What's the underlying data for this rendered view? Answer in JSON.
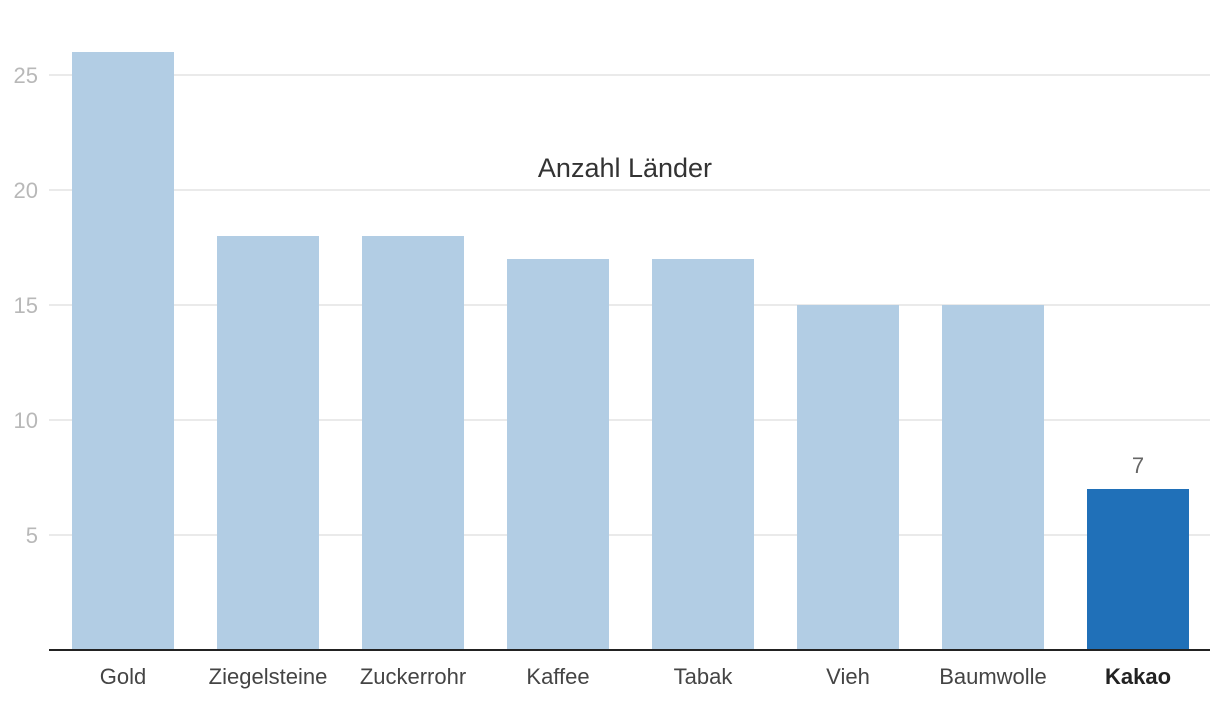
{
  "chart_data": {
    "type": "bar",
    "title": "Anzahl Länder",
    "categories": [
      "Gold",
      "Ziegelsteine",
      "Zuckerrohr",
      "Kaffee",
      "Tabak",
      "Vieh",
      "Baumwolle",
      "Kakao"
    ],
    "values": [
      26,
      18,
      18,
      17,
      17,
      15,
      15,
      7
    ],
    "highlight_category": "Kakao",
    "data_labels": [
      {
        "category": "Kakao",
        "text": "7"
      }
    ],
    "y_ticks": [
      5,
      10,
      15,
      20,
      25
    ],
    "ylim": [
      0,
      27
    ],
    "grid": true,
    "xlabel": "",
    "ylabel": "",
    "colors": {
      "bar": "#b2cde4",
      "highlight": "#2070b8"
    }
  }
}
